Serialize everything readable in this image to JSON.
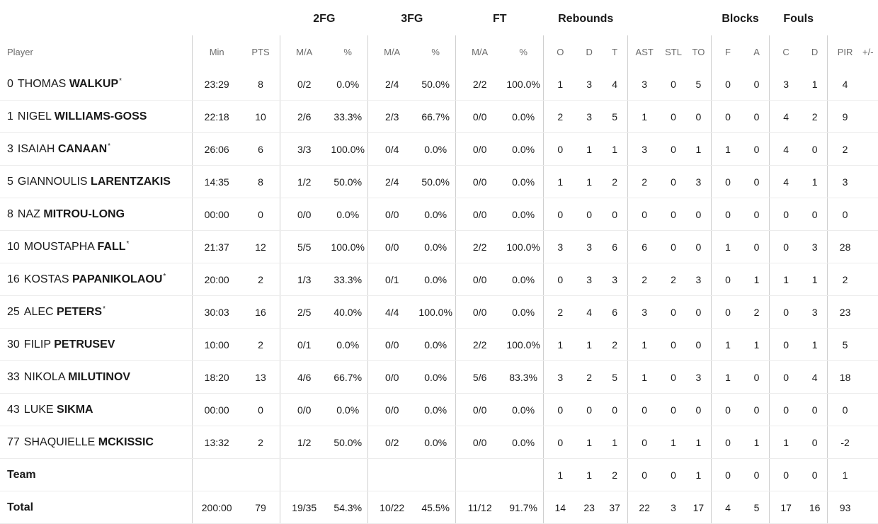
{
  "groups": {
    "fg2": "2FG",
    "fg3": "3FG",
    "ft": "FT",
    "rebounds": "Rebounds",
    "blocks": "Blocks",
    "fouls": "Fouls"
  },
  "headers": {
    "player": "Player",
    "min": "Min",
    "pts": "PTS",
    "fg2_ma": "M/A",
    "fg2_pct": "%",
    "fg3_ma": "M/A",
    "fg3_pct": "%",
    "ft_ma": "M/A",
    "ft_pct": "%",
    "reb_o": "O",
    "reb_d": "D",
    "reb_t": "T",
    "ast": "AST",
    "stl": "STL",
    "to": "TO",
    "blk_f": "F",
    "blk_a": "A",
    "foul_c": "C",
    "foul_d": "D",
    "pir": "PIR",
    "pm": "+/-"
  },
  "players": [
    {
      "number": "0",
      "first": "THOMAS",
      "last": "WALKUP",
      "star": "*",
      "min": "23:29",
      "pts": "8",
      "fg2_ma": "0/2",
      "fg2_pct": "0.0%",
      "fg3_ma": "2/4",
      "fg3_pct": "50.0%",
      "ft_ma": "2/2",
      "ft_pct": "100.0%",
      "o": "1",
      "d": "3",
      "t": "4",
      "ast": "3",
      "stl": "0",
      "to": "5",
      "blk_f": "0",
      "blk_a": "0",
      "foul_c": "3",
      "foul_d": "1",
      "pir": "4"
    },
    {
      "number": "1",
      "first": "NIGEL",
      "last": "WILLIAMS-GOSS",
      "star": "",
      "min": "22:18",
      "pts": "10",
      "fg2_ma": "2/6",
      "fg2_pct": "33.3%",
      "fg3_ma": "2/3",
      "fg3_pct": "66.7%",
      "ft_ma": "0/0",
      "ft_pct": "0.0%",
      "o": "2",
      "d": "3",
      "t": "5",
      "ast": "1",
      "stl": "0",
      "to": "0",
      "blk_f": "0",
      "blk_a": "0",
      "foul_c": "4",
      "foul_d": "2",
      "pir": "9"
    },
    {
      "number": "3",
      "first": "ISAIAH",
      "last": "CANAAN",
      "star": "*",
      "min": "26:06",
      "pts": "6",
      "fg2_ma": "3/3",
      "fg2_pct": "100.0%",
      "fg3_ma": "0/4",
      "fg3_pct": "0.0%",
      "ft_ma": "0/0",
      "ft_pct": "0.0%",
      "o": "0",
      "d": "1",
      "t": "1",
      "ast": "3",
      "stl": "0",
      "to": "1",
      "blk_f": "1",
      "blk_a": "0",
      "foul_c": "4",
      "foul_d": "0",
      "pir": "2"
    },
    {
      "number": "5",
      "first": "GIANNOULIS",
      "last": "LARENTZAKIS",
      "star": "",
      "min": "14:35",
      "pts": "8",
      "fg2_ma": "1/2",
      "fg2_pct": "50.0%",
      "fg3_ma": "2/4",
      "fg3_pct": "50.0%",
      "ft_ma": "0/0",
      "ft_pct": "0.0%",
      "o": "1",
      "d": "1",
      "t": "2",
      "ast": "2",
      "stl": "0",
      "to": "3",
      "blk_f": "0",
      "blk_a": "0",
      "foul_c": "4",
      "foul_d": "1",
      "pir": "3"
    },
    {
      "number": "8",
      "first": "NAZ",
      "last": "MITROU-LONG",
      "star": "",
      "min": "00:00",
      "pts": "0",
      "fg2_ma": "0/0",
      "fg2_pct": "0.0%",
      "fg3_ma": "0/0",
      "fg3_pct": "0.0%",
      "ft_ma": "0/0",
      "ft_pct": "0.0%",
      "o": "0",
      "d": "0",
      "t": "0",
      "ast": "0",
      "stl": "0",
      "to": "0",
      "blk_f": "0",
      "blk_a": "0",
      "foul_c": "0",
      "foul_d": "0",
      "pir": "0"
    },
    {
      "number": "10",
      "first": "MOUSTAPHA",
      "last": "FALL",
      "star": "*",
      "min": "21:37",
      "pts": "12",
      "fg2_ma": "5/5",
      "fg2_pct": "100.0%",
      "fg3_ma": "0/0",
      "fg3_pct": "0.0%",
      "ft_ma": "2/2",
      "ft_pct": "100.0%",
      "o": "3",
      "d": "3",
      "t": "6",
      "ast": "6",
      "stl": "0",
      "to": "0",
      "blk_f": "1",
      "blk_a": "0",
      "foul_c": "0",
      "foul_d": "3",
      "pir": "28"
    },
    {
      "number": "16",
      "first": "KOSTAS",
      "last": "PAPANIKOLAOU",
      "star": "*",
      "min": "20:00",
      "pts": "2",
      "fg2_ma": "1/3",
      "fg2_pct": "33.3%",
      "fg3_ma": "0/1",
      "fg3_pct": "0.0%",
      "ft_ma": "0/0",
      "ft_pct": "0.0%",
      "o": "0",
      "d": "3",
      "t": "3",
      "ast": "2",
      "stl": "2",
      "to": "3",
      "blk_f": "0",
      "blk_a": "1",
      "foul_c": "1",
      "foul_d": "1",
      "pir": "2"
    },
    {
      "number": "25",
      "first": "ALEC",
      "last": "PETERS",
      "star": "*",
      "min": "30:03",
      "pts": "16",
      "fg2_ma": "2/5",
      "fg2_pct": "40.0%",
      "fg3_ma": "4/4",
      "fg3_pct": "100.0%",
      "ft_ma": "0/0",
      "ft_pct": "0.0%",
      "o": "2",
      "d": "4",
      "t": "6",
      "ast": "3",
      "stl": "0",
      "to": "0",
      "blk_f": "0",
      "blk_a": "2",
      "foul_c": "0",
      "foul_d": "3",
      "pir": "23"
    },
    {
      "number": "30",
      "first": "FILIP",
      "last": "PETRUSEV",
      "star": "",
      "min": "10:00",
      "pts": "2",
      "fg2_ma": "0/1",
      "fg2_pct": "0.0%",
      "fg3_ma": "0/0",
      "fg3_pct": "0.0%",
      "ft_ma": "2/2",
      "ft_pct": "100.0%",
      "o": "1",
      "d": "1",
      "t": "2",
      "ast": "1",
      "stl": "0",
      "to": "0",
      "blk_f": "1",
      "blk_a": "1",
      "foul_c": "0",
      "foul_d": "1",
      "pir": "5"
    },
    {
      "number": "33",
      "first": "NIKOLA",
      "last": "MILUTINOV",
      "star": "",
      "min": "18:20",
      "pts": "13",
      "fg2_ma": "4/6",
      "fg2_pct": "66.7%",
      "fg3_ma": "0/0",
      "fg3_pct": "0.0%",
      "ft_ma": "5/6",
      "ft_pct": "83.3%",
      "o": "3",
      "d": "2",
      "t": "5",
      "ast": "1",
      "stl": "0",
      "to": "3",
      "blk_f": "1",
      "blk_a": "0",
      "foul_c": "0",
      "foul_d": "4",
      "pir": "18"
    },
    {
      "number": "43",
      "first": "LUKE",
      "last": "SIKMA",
      "star": "",
      "min": "00:00",
      "pts": "0",
      "fg2_ma": "0/0",
      "fg2_pct": "0.0%",
      "fg3_ma": "0/0",
      "fg3_pct": "0.0%",
      "ft_ma": "0/0",
      "ft_pct": "0.0%",
      "o": "0",
      "d": "0",
      "t": "0",
      "ast": "0",
      "stl": "0",
      "to": "0",
      "blk_f": "0",
      "blk_a": "0",
      "foul_c": "0",
      "foul_d": "0",
      "pir": "0"
    },
    {
      "number": "77",
      "first": "SHAQUIELLE",
      "last": "MCKISSIC",
      "star": "",
      "min": "13:32",
      "pts": "2",
      "fg2_ma": "1/2",
      "fg2_pct": "50.0%",
      "fg3_ma": "0/2",
      "fg3_pct": "0.0%",
      "ft_ma": "0/0",
      "ft_pct": "0.0%",
      "o": "0",
      "d": "1",
      "t": "1",
      "ast": "0",
      "stl": "1",
      "to": "1",
      "blk_f": "0",
      "blk_a": "1",
      "foul_c": "1",
      "foul_d": "0",
      "pir": "-2"
    }
  ],
  "team": {
    "label": "Team",
    "min": "",
    "pts": "",
    "fg2_ma": "",
    "fg2_pct": "",
    "fg3_ma": "",
    "fg3_pct": "",
    "ft_ma": "",
    "ft_pct": "",
    "o": "1",
    "d": "1",
    "t": "2",
    "ast": "0",
    "stl": "0",
    "to": "1",
    "blk_f": "0",
    "blk_a": "0",
    "foul_c": "0",
    "foul_d": "0",
    "pir": "1"
  },
  "total": {
    "label": "Total",
    "min": "200:00",
    "pts": "79",
    "fg2_ma": "19/35",
    "fg2_pct": "54.3%",
    "fg3_ma": "10/22",
    "fg3_pct": "45.5%",
    "ft_ma": "11/12",
    "ft_pct": "91.7%",
    "o": "14",
    "d": "23",
    "t": "37",
    "ast": "22",
    "stl": "3",
    "to": "17",
    "blk_f": "4",
    "blk_a": "5",
    "foul_c": "17",
    "foul_d": "16",
    "pir": "93"
  }
}
